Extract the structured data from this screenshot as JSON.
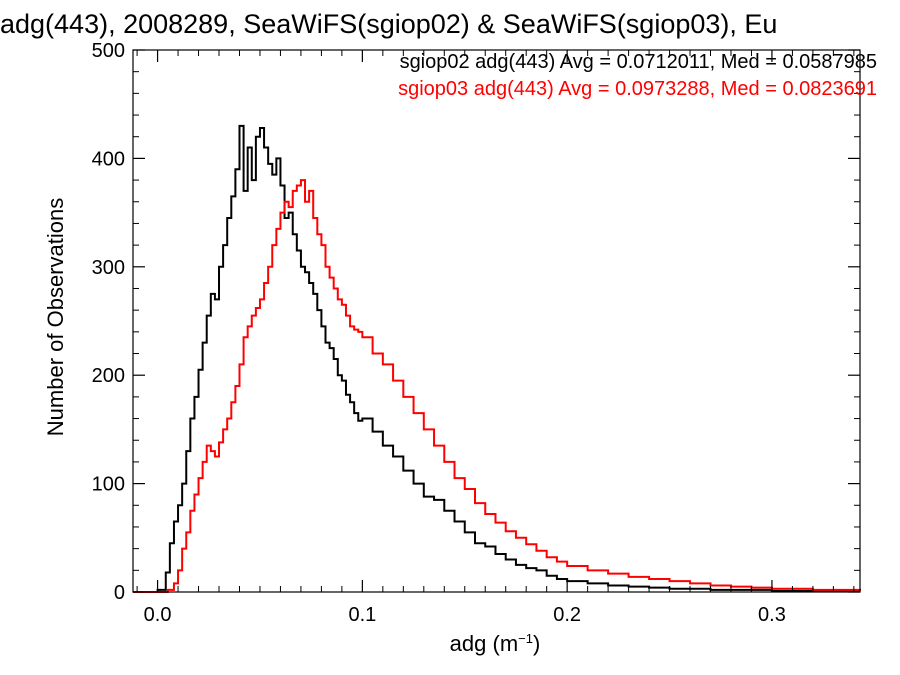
{
  "chart_data": {
    "type": "histogram-step",
    "title": "adg(443), 2008289, SeaWiFS(sgiop02) & SeaWiFS(sgiop03), Eu",
    "xlabel_base": "adg (m",
    "xlabel_sup": "−1",
    "xlabel_end": ")",
    "ylabel": "Number of Observations",
    "xlim": [
      -0.012,
      0.343
    ],
    "ylim": [
      0,
      500
    ],
    "xticks": [
      0.0,
      0.1,
      0.2,
      0.3
    ],
    "xtick_labels": [
      "0.0",
      "0.1",
      "0.2",
      "0.3"
    ],
    "yticks": [
      0,
      100,
      200,
      300,
      400,
      500
    ],
    "ytick_labels": [
      "0",
      "100",
      "200",
      "300",
      "400",
      "500"
    ],
    "grid": false,
    "legend_position": "top-right",
    "series": [
      {
        "name": "sgiop02",
        "color": "#000000",
        "stat_text": "sgiop02 adg(443) Avg = 0.0712011, Med = 0.0587985",
        "points": [
          [
            -0.012,
            0
          ],
          [
            0.0,
            2
          ],
          [
            0.004,
            18
          ],
          [
            0.006,
            45
          ],
          [
            0.008,
            65
          ],
          [
            0.01,
            80
          ],
          [
            0.012,
            100
          ],
          [
            0.014,
            130
          ],
          [
            0.016,
            160
          ],
          [
            0.018,
            180
          ],
          [
            0.02,
            205
          ],
          [
            0.022,
            230
          ],
          [
            0.024,
            255
          ],
          [
            0.026,
            275
          ],
          [
            0.028,
            270
          ],
          [
            0.03,
            300
          ],
          [
            0.032,
            320
          ],
          [
            0.034,
            345
          ],
          [
            0.036,
            365
          ],
          [
            0.038,
            390
          ],
          [
            0.04,
            430
          ],
          [
            0.042,
            370
          ],
          [
            0.044,
            410
          ],
          [
            0.046,
            380
          ],
          [
            0.048,
            420
          ],
          [
            0.05,
            428
          ],
          [
            0.052,
            410
          ],
          [
            0.054,
            395
          ],
          [
            0.056,
            385
          ],
          [
            0.058,
            400
          ],
          [
            0.06,
            375
          ],
          [
            0.062,
            345
          ],
          [
            0.064,
            350
          ],
          [
            0.066,
            330
          ],
          [
            0.068,
            315
          ],
          [
            0.07,
            300
          ],
          [
            0.072,
            295
          ],
          [
            0.074,
            285
          ],
          [
            0.076,
            275
          ],
          [
            0.078,
            260
          ],
          [
            0.08,
            245
          ],
          [
            0.082,
            230
          ],
          [
            0.084,
            225
          ],
          [
            0.086,
            215
          ],
          [
            0.088,
            200
          ],
          [
            0.09,
            195
          ],
          [
            0.092,
            182
          ],
          [
            0.094,
            175
          ],
          [
            0.096,
            165
          ],
          [
            0.098,
            158
          ],
          [
            0.1,
            160
          ],
          [
            0.105,
            148
          ],
          [
            0.11,
            135
          ],
          [
            0.115,
            125
          ],
          [
            0.12,
            112
          ],
          [
            0.125,
            100
          ],
          [
            0.13,
            88
          ],
          [
            0.135,
            85
          ],
          [
            0.14,
            75
          ],
          [
            0.145,
            65
          ],
          [
            0.15,
            55
          ],
          [
            0.155,
            45
          ],
          [
            0.16,
            42
          ],
          [
            0.165,
            35
          ],
          [
            0.17,
            30
          ],
          [
            0.175,
            25
          ],
          [
            0.18,
            22
          ],
          [
            0.185,
            20
          ],
          [
            0.19,
            15
          ],
          [
            0.195,
            12
          ],
          [
            0.2,
            10
          ],
          [
            0.21,
            8
          ],
          [
            0.22,
            6
          ],
          [
            0.23,
            5
          ],
          [
            0.24,
            4
          ],
          [
            0.25,
            3
          ],
          [
            0.26,
            3
          ],
          [
            0.27,
            2
          ],
          [
            0.28,
            2
          ],
          [
            0.3,
            1
          ],
          [
            0.32,
            1
          ],
          [
            0.343,
            1
          ]
        ]
      },
      {
        "name": "sgiop03",
        "color": "#ff0000",
        "stat_text": "sgiop03 adg(443) Avg = 0.0973288, Med = 0.0823691",
        "points": [
          [
            -0.012,
            0
          ],
          [
            0.005,
            2
          ],
          [
            0.008,
            8
          ],
          [
            0.01,
            20
          ],
          [
            0.012,
            40
          ],
          [
            0.014,
            55
          ],
          [
            0.016,
            75
          ],
          [
            0.018,
            90
          ],
          [
            0.02,
            105
          ],
          [
            0.022,
            120
          ],
          [
            0.024,
            135
          ],
          [
            0.026,
            130
          ],
          [
            0.028,
            125
          ],
          [
            0.03,
            138
          ],
          [
            0.032,
            150
          ],
          [
            0.034,
            160
          ],
          [
            0.036,
            175
          ],
          [
            0.038,
            190
          ],
          [
            0.04,
            210
          ],
          [
            0.042,
            235
          ],
          [
            0.044,
            245
          ],
          [
            0.046,
            255
          ],
          [
            0.048,
            262
          ],
          [
            0.05,
            270
          ],
          [
            0.052,
            285
          ],
          [
            0.054,
            300
          ],
          [
            0.056,
            320
          ],
          [
            0.058,
            335
          ],
          [
            0.06,
            350
          ],
          [
            0.062,
            360
          ],
          [
            0.064,
            355
          ],
          [
            0.066,
            370
          ],
          [
            0.068,
            375
          ],
          [
            0.07,
            380
          ],
          [
            0.072,
            360
          ],
          [
            0.074,
            370
          ],
          [
            0.076,
            345
          ],
          [
            0.078,
            330
          ],
          [
            0.08,
            320
          ],
          [
            0.082,
            300
          ],
          [
            0.084,
            290
          ],
          [
            0.086,
            280
          ],
          [
            0.088,
            270
          ],
          [
            0.09,
            265
          ],
          [
            0.092,
            255
          ],
          [
            0.094,
            245
          ],
          [
            0.096,
            242
          ],
          [
            0.098,
            240
          ],
          [
            0.1,
            235
          ],
          [
            0.105,
            220
          ],
          [
            0.11,
            210
          ],
          [
            0.115,
            195
          ],
          [
            0.12,
            180
          ],
          [
            0.125,
            165
          ],
          [
            0.13,
            150
          ],
          [
            0.135,
            135
          ],
          [
            0.14,
            120
          ],
          [
            0.145,
            105
          ],
          [
            0.15,
            95
          ],
          [
            0.155,
            82
          ],
          [
            0.16,
            72
          ],
          [
            0.165,
            64
          ],
          [
            0.17,
            56
          ],
          [
            0.175,
            50
          ],
          [
            0.18,
            44
          ],
          [
            0.185,
            38
          ],
          [
            0.19,
            32
          ],
          [
            0.195,
            28
          ],
          [
            0.2,
            24
          ],
          [
            0.21,
            20
          ],
          [
            0.22,
            17
          ],
          [
            0.23,
            14
          ],
          [
            0.24,
            12
          ],
          [
            0.25,
            10
          ],
          [
            0.26,
            8
          ],
          [
            0.27,
            6
          ],
          [
            0.28,
            5
          ],
          [
            0.29,
            4
          ],
          [
            0.3,
            3
          ],
          [
            0.32,
            2
          ],
          [
            0.343,
            1
          ]
        ]
      }
    ]
  }
}
